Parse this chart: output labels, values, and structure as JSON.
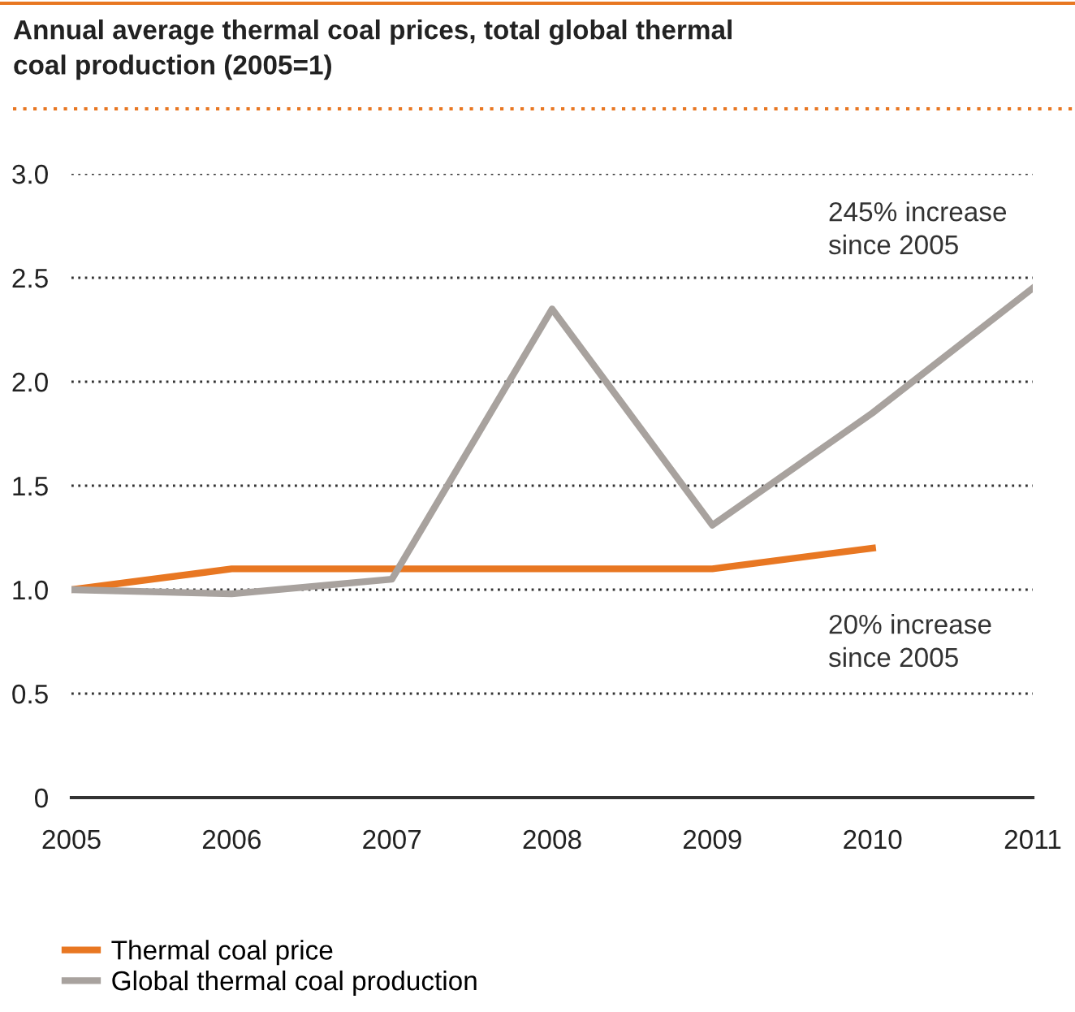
{
  "chart_data": {
    "type": "line",
    "title": "Annual average thermal coal prices, total global thermal\ncoal production (2005=1)",
    "categories": [
      "2005",
      "2006",
      "2007",
      "2008",
      "2009",
      "2010",
      "2011"
    ],
    "series": [
      {
        "name": "Thermal coal price",
        "color": "#e87722",
        "values": [
          1.0,
          1.1,
          1.1,
          1.1,
          1.1,
          1.2,
          null
        ]
      },
      {
        "name": "Global thermal coal production",
        "color": "#a8a29e",
        "values": [
          1.0,
          0.98,
          1.05,
          2.35,
          1.31,
          1.85,
          2.45
        ]
      }
    ],
    "ylim": [
      0,
      3
    ],
    "yticks": [
      {
        "value": 0,
        "label": "0"
      },
      {
        "value": 0.5,
        "label": "0.5"
      },
      {
        "value": 1,
        "label": "1.0"
      },
      {
        "value": 1.5,
        "label": "1.5"
      },
      {
        "value": 2,
        "label": "2.0"
      },
      {
        "value": 2.5,
        "label": "2.5"
      },
      {
        "value": 3,
        "label": "3.0"
      }
    ],
    "annotations": [
      "245% increase\nsince 2005",
      "20% increase\nsince 2005"
    ],
    "grid": "y",
    "legend": "bottom",
    "marker": "none",
    "line_style": "solid"
  }
}
